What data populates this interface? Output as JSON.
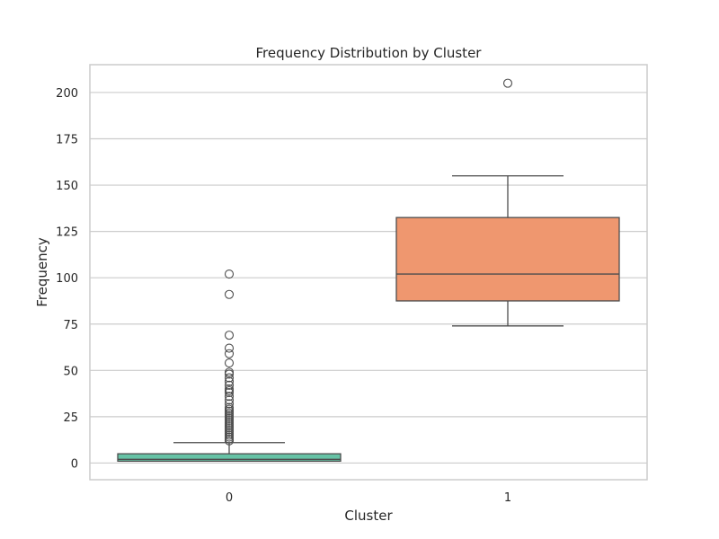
{
  "chart_data": {
    "type": "box",
    "title": "Frequency Distribution by Cluster",
    "xlabel": "Cluster",
    "ylabel": "Frequency",
    "ylim": [
      -9,
      215
    ],
    "yticks": [
      0,
      25,
      50,
      75,
      100,
      125,
      150,
      175,
      200
    ],
    "grid": true,
    "categories": [
      "0",
      "1"
    ],
    "boxes": [
      {
        "category": "0",
        "color": "#66c2a5",
        "whisker_low": 1,
        "q1": 1,
        "median": 2,
        "q3": 5,
        "whisker_high": 11,
        "outliers": [
          102,
          91,
          69,
          62,
          59,
          54,
          49,
          48,
          46,
          44,
          42,
          40,
          39,
          38,
          36,
          34,
          32,
          30,
          29,
          28,
          27,
          26,
          25,
          24,
          23,
          22,
          21,
          20,
          19,
          18,
          17,
          16,
          15,
          14,
          13,
          12
        ]
      },
      {
        "category": "1",
        "color": "#ef976f",
        "whisker_low": 74,
        "q1": 87.5,
        "median": 102,
        "q3": 132.5,
        "whisker_high": 155,
        "outliers": [
          205
        ]
      }
    ]
  }
}
